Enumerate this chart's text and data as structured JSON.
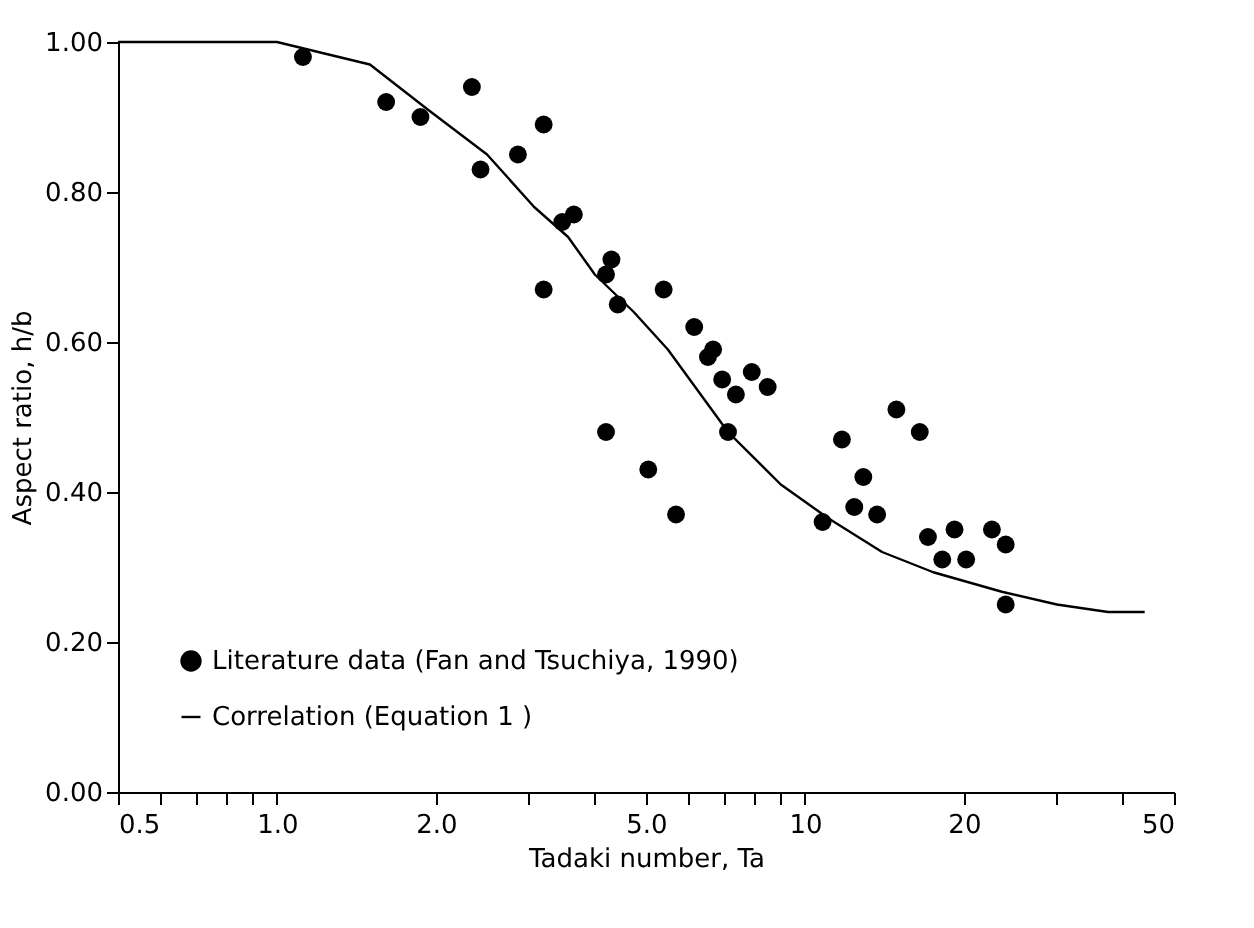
{
  "chart_data": {
    "type": "scatter",
    "xlabel": "Tadaki number, Ta",
    "ylabel": "Aspect ratio, h/b",
    "xlim": [
      0.5,
      50
    ],
    "ylim": [
      0,
      1.0
    ],
    "log": "x",
    "grid": false,
    "legend": "bottom left",
    "xticks": [
      {
        "value": 0.5,
        "label": "0.5"
      },
      {
        "value": 0.6,
        "label": null
      },
      {
        "value": 0.7,
        "label": null
      },
      {
        "value": 0.8,
        "label": null
      },
      {
        "value": 0.9,
        "label": null
      },
      {
        "value": 1,
        "label": "1.0"
      },
      {
        "value": 2,
        "label": "2.0"
      },
      {
        "value": 3,
        "label": null
      },
      {
        "value": 4,
        "label": null
      },
      {
        "value": 5,
        "label": "5.0"
      },
      {
        "value": 6,
        "label": null
      },
      {
        "value": 7,
        "label": null
      },
      {
        "value": 8,
        "label": null
      },
      {
        "value": 9,
        "label": null
      },
      {
        "value": 10,
        "label": "10"
      },
      {
        "value": 20,
        "label": "20"
      },
      {
        "value": 30,
        "label": null
      },
      {
        "value": 40,
        "label": null
      },
      {
        "value": 50,
        "label": "50"
      }
    ],
    "yticks": [
      {
        "value": 0,
        "label": "0.00"
      },
      {
        "value": 0.2,
        "label": "0.20"
      },
      {
        "value": 0.4,
        "label": "0.40"
      },
      {
        "value": 0.6,
        "label": "0.60"
      },
      {
        "value": 0.8,
        "label": "0.80"
      },
      {
        "value": 1.0,
        "label": "1.00"
      }
    ],
    "series": [
      {
        "name": "Literature data (Fan and Tsuchiya, 1990)",
        "type": "scatter",
        "marker": "circle",
        "color": "#000000",
        "x": [
          1.12,
          1.61,
          1.87,
          2.34,
          2.43,
          2.86,
          3.2,
          3.2,
          3.47,
          3.65,
          4.2,
          4.3,
          4.42,
          4.2,
          5.05,
          5.4,
          5.7,
          6.17,
          6.55,
          6.7,
          6.97,
          7.15,
          7.4,
          7.93,
          8.5,
          10.8,
          11.75,
          12.9,
          12.4,
          13.7,
          14.9,
          16.5,
          17.1,
          18.2,
          19.2,
          20.2,
          22.6,
          24,
          24
        ],
        "values": [
          0.98,
          0.92,
          0.9,
          0.94,
          0.83,
          0.85,
          0.89,
          0.67,
          0.76,
          0.77,
          0.69,
          0.71,
          0.65,
          0.48,
          0.43,
          0.67,
          0.37,
          0.62,
          0.58,
          0.59,
          0.55,
          0.48,
          0.53,
          0.56,
          0.54,
          0.36,
          0.47,
          0.42,
          0.38,
          0.37,
          0.51,
          0.48,
          0.34,
          0.31,
          0.35,
          0.31,
          0.35,
          0.33,
          0.25
        ]
      },
      {
        "name": "Correlation (Equation 1 )",
        "type": "line",
        "line_style": "solid",
        "marker": "none",
        "color": "#000000",
        "x": [
          0.5,
          1.0,
          1.5,
          1.93,
          2.5,
          3.07,
          3.56,
          4.0,
          4.74,
          5.5,
          7.15,
          9.0,
          11.07,
          14,
          17.5,
          23.6,
          30,
          37.5,
          44
        ],
        "values": [
          1.0,
          1.0,
          0.97,
          0.91,
          0.85,
          0.78,
          0.74,
          0.69,
          0.64,
          0.59,
          0.48,
          0.41,
          0.365,
          0.32,
          0.293,
          0.267,
          0.25,
          0.24,
          0.24
        ]
      }
    ]
  }
}
